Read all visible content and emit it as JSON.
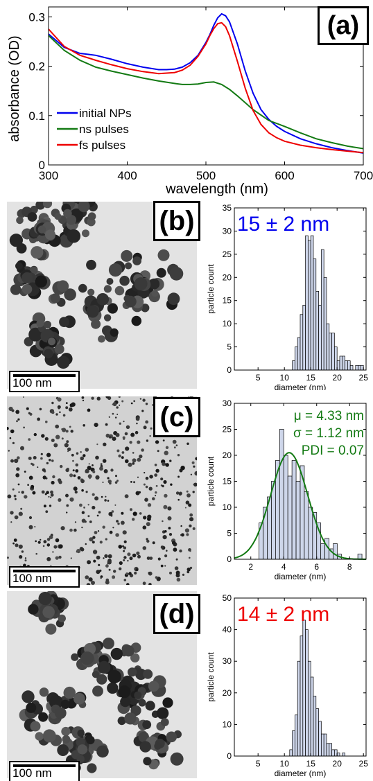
{
  "panels": {
    "a": {
      "label": "(a)"
    },
    "b": {
      "label": "(b)",
      "scale_label": "100 nm"
    },
    "c": {
      "label": "(c)",
      "scale_label": "100 nm"
    },
    "d": {
      "label": "(d)",
      "scale_label": "100 nm"
    }
  },
  "colors": {
    "blue": "#0000ee",
    "green": "#137a13",
    "red": "#ee0000",
    "hist_fill": "#ced6ea"
  },
  "chart_data": [
    {
      "id": "absorbance",
      "type": "line",
      "xlabel": "wavelength (nm)",
      "ylabel": "absorbance (OD)",
      "xlim": [
        300,
        700
      ],
      "ylim": [
        0,
        0.32
      ],
      "xticks": [
        300,
        400,
        500,
        600,
        700
      ],
      "yticks": [
        0,
        0.1,
        0.2,
        0.3
      ],
      "legend_position": "bottom-left",
      "series": [
        {
          "name": "initial NPs",
          "color": "#0000ee",
          "x": [
            300,
            320,
            340,
            360,
            380,
            400,
            420,
            440,
            450,
            460,
            470,
            480,
            490,
            500,
            505,
            510,
            515,
            520,
            525,
            530,
            540,
            550,
            560,
            570,
            580,
            590,
            600,
            620,
            640,
            660,
            680,
            700
          ],
          "y": [
            0.265,
            0.238,
            0.226,
            0.222,
            0.214,
            0.205,
            0.198,
            0.193,
            0.193,
            0.194,
            0.198,
            0.207,
            0.222,
            0.248,
            0.264,
            0.283,
            0.298,
            0.306,
            0.302,
            0.29,
            0.245,
            0.19,
            0.145,
            0.112,
            0.092,
            0.078,
            0.068,
            0.053,
            0.043,
            0.035,
            0.029,
            0.024
          ]
        },
        {
          "name": "ns pulses",
          "color": "#137a13",
          "x": [
            300,
            320,
            340,
            360,
            380,
            400,
            420,
            440,
            460,
            470,
            480,
            490,
            500,
            510,
            520,
            530,
            540,
            560,
            580,
            600,
            620,
            640,
            660,
            680,
            700
          ],
          "y": [
            0.262,
            0.232,
            0.212,
            0.198,
            0.19,
            0.183,
            0.176,
            0.17,
            0.165,
            0.163,
            0.163,
            0.164,
            0.167,
            0.168,
            0.163,
            0.153,
            0.14,
            0.112,
            0.09,
            0.078,
            0.065,
            0.053,
            0.045,
            0.038,
            0.033
          ]
        },
        {
          "name": "fs pulses",
          "color": "#ee0000",
          "x": [
            300,
            320,
            340,
            360,
            380,
            400,
            420,
            440,
            460,
            470,
            480,
            490,
            500,
            505,
            510,
            515,
            520,
            525,
            530,
            540,
            550,
            560,
            570,
            580,
            590,
            600,
            620,
            640,
            660,
            680,
            700
          ],
          "y": [
            0.275,
            0.24,
            0.222,
            0.212,
            0.203,
            0.195,
            0.189,
            0.185,
            0.187,
            0.192,
            0.202,
            0.22,
            0.245,
            0.262,
            0.276,
            0.286,
            0.288,
            0.28,
            0.262,
            0.21,
            0.155,
            0.11,
            0.082,
            0.065,
            0.055,
            0.048,
            0.04,
            0.035,
            0.031,
            0.028,
            0.025
          ]
        }
      ]
    },
    {
      "id": "hist_b",
      "type": "bar",
      "xlabel": "diameter (nm)",
      "ylabel": "particle count",
      "xlim": [
        0.5,
        25.5
      ],
      "ylim": [
        0,
        35
      ],
      "xticks": [
        5,
        10,
        15,
        20,
        25
      ],
      "yticks": [
        0,
        5,
        10,
        15,
        20,
        25,
        30,
        35
      ],
      "bin_width": 0.5,
      "annotation": "15 ± 2 nm",
      "annotation_color": "#0000ee",
      "bins": [
        0.5,
        1,
        1.5,
        2,
        2.5,
        3,
        3.5,
        4,
        4.5,
        5,
        5.5,
        6,
        6.5,
        7,
        7.5,
        8,
        8.5,
        9,
        9.5,
        10,
        10.5,
        11,
        11.5,
        12,
        12.5,
        13,
        13.5,
        14,
        14.5,
        15,
        15.5,
        16,
        16.5,
        17,
        17.5,
        18,
        18.5,
        19,
        19.5,
        20,
        20.5,
        21,
        21.5,
        22,
        22.5,
        23,
        23.5,
        24,
        24.5,
        25
      ],
      "values": [
        0,
        0,
        0,
        0,
        0,
        0,
        0,
        0,
        0,
        0,
        0,
        0,
        0,
        0,
        0,
        0,
        0,
        0,
        0,
        0,
        0,
        0,
        2,
        5,
        7,
        12,
        14,
        29,
        28,
        29,
        24,
        17,
        14,
        26,
        20,
        10,
        8,
        8,
        5,
        2,
        3,
        3,
        2,
        2,
        1,
        0,
        1,
        1,
        1,
        0
      ]
    },
    {
      "id": "hist_c",
      "type": "bar",
      "xlabel": "diameter (nm)",
      "ylabel": "particle count",
      "xlim": [
        1,
        9
      ],
      "ylim": [
        0,
        30
      ],
      "xticks": [
        2,
        4,
        6,
        8
      ],
      "yticks": [
        0,
        5,
        10,
        15,
        20,
        25,
        30
      ],
      "bin_width": 0.25,
      "annotation_lines": [
        "μ = 4.33 nm",
        "σ = 1.12 nm",
        "PDI = 0.07"
      ],
      "annotation_color": "#137a13",
      "fit": {
        "mu": 4.33,
        "sigma": 1.12,
        "peak": 20.5
      },
      "bins": [
        2.5,
        2.75,
        3,
        3.25,
        3.5,
        3.75,
        4,
        4.25,
        4.5,
        4.75,
        5,
        5.25,
        5.5,
        5.75,
        6,
        6.25,
        6.5,
        6.75,
        7,
        7.25,
        7.5,
        7.75,
        8,
        8.25,
        8.5
      ],
      "values": [
        7,
        10,
        12,
        15,
        19,
        25,
        20,
        16,
        19,
        15,
        18,
        13,
        10,
        9,
        7,
        3,
        4,
        2,
        3,
        1,
        0,
        0,
        0,
        0,
        1
      ]
    },
    {
      "id": "hist_d",
      "type": "bar",
      "xlabel": "diameter (nm)",
      "ylabel": "particle count",
      "xlim": [
        0.5,
        25.5
      ],
      "ylim": [
        0,
        50
      ],
      "xticks": [
        5,
        10,
        15,
        20,
        25
      ],
      "yticks": [
        0,
        10,
        20,
        30,
        40,
        50
      ],
      "bin_width": 0.5,
      "annotation": "14 ± 2 nm",
      "annotation_color": "#ee0000",
      "bins": [
        0.5,
        1,
        1.5,
        2,
        2.5,
        3,
        3.5,
        4,
        4.5,
        5,
        5.5,
        6,
        6.5,
        7,
        7.5,
        8,
        8.5,
        9,
        9.5,
        10,
        10.5,
        11,
        11.5,
        12,
        12.5,
        13,
        13.5,
        14,
        14.5,
        15,
        15.5,
        16,
        16.5,
        17,
        17.5,
        18,
        18.5,
        19,
        19.5,
        20,
        20.5,
        21,
        21.5,
        22,
        22.5,
        23,
        23.5,
        24,
        24.5,
        25
      ],
      "values": [
        0,
        0,
        0,
        0,
        0,
        0,
        0,
        0,
        0,
        0,
        0,
        0,
        0,
        0,
        0,
        0,
        0,
        0,
        0,
        0,
        0,
        2,
        8,
        13,
        30,
        38,
        43,
        40,
        30,
        25,
        19,
        15,
        11,
        7,
        7,
        4,
        4,
        2,
        2,
        1,
        0,
        1,
        0,
        0,
        0,
        0,
        0,
        0,
        0,
        0
      ]
    }
  ]
}
